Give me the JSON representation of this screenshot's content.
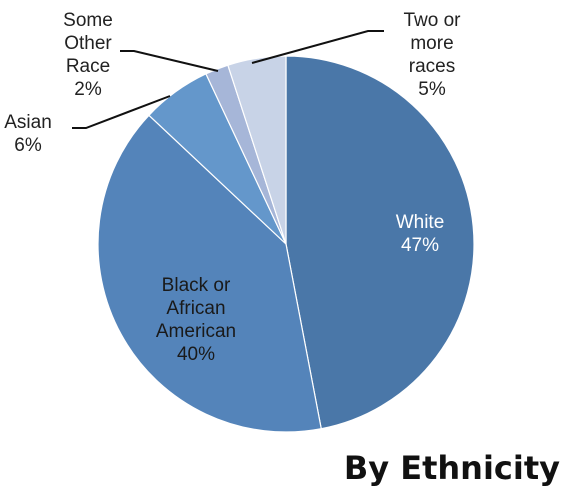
{
  "chart_data": {
    "type": "pie",
    "title": "By Ethnicity",
    "slices": [
      {
        "label_lines": [
          "White"
        ],
        "value": 47,
        "pct": "47%",
        "color": "#4a77a8"
      },
      {
        "label_lines": [
          "Black or",
          "African",
          "American"
        ],
        "value": 40,
        "pct": "40%",
        "color": "#5484ba"
      },
      {
        "label_lines": [
          "Asian"
        ],
        "value": 6,
        "pct": "6%",
        "color": "#6497cb"
      },
      {
        "label_lines": [
          "Some",
          "Other",
          "Race"
        ],
        "value": 2,
        "pct": "2%",
        "color": "#a6b6d8"
      },
      {
        "label_lines": [
          "Two or",
          "more",
          "races"
        ],
        "value": 5,
        "pct": "5%",
        "color": "#c8d3e7"
      }
    ]
  }
}
